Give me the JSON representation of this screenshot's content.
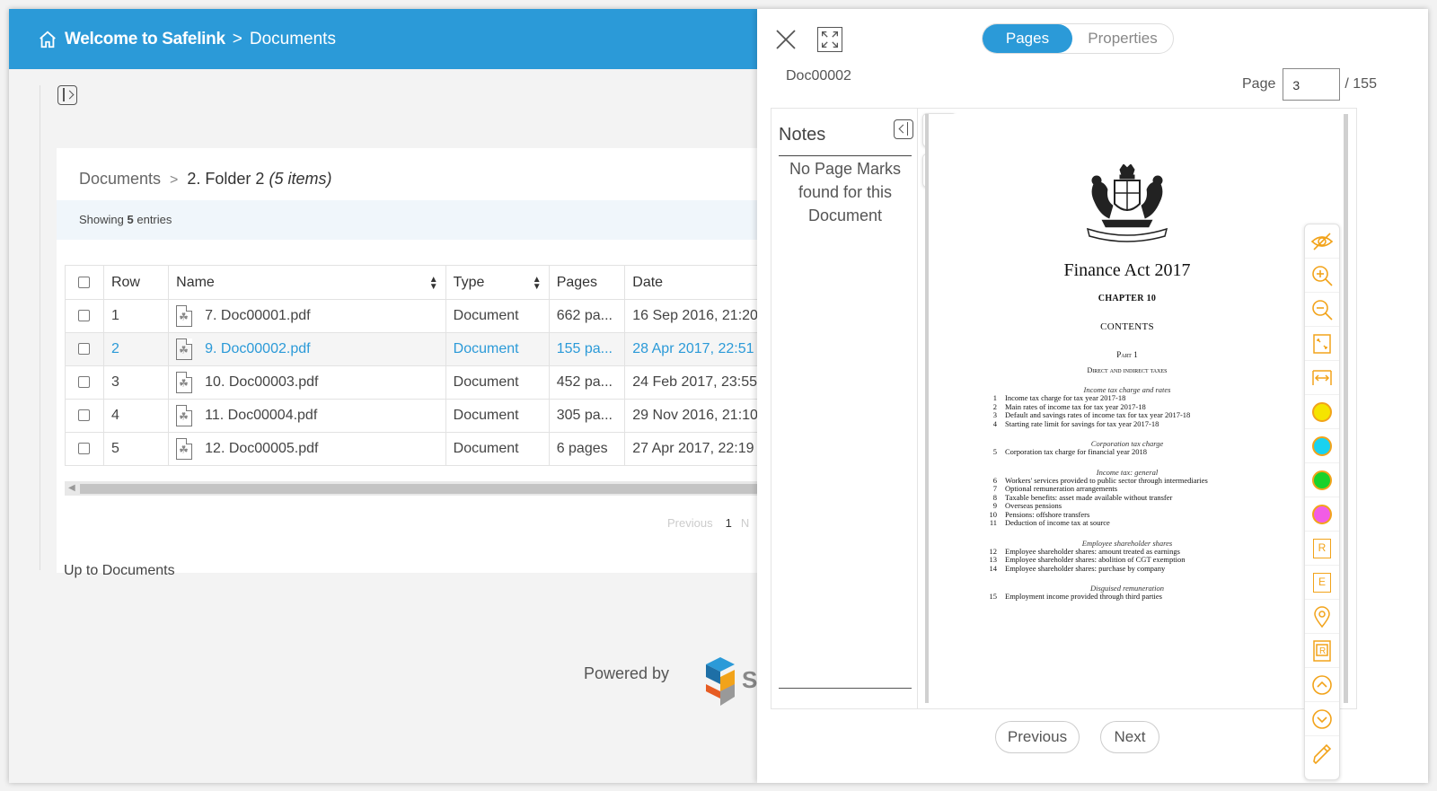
{
  "header": {
    "app_name": "Welcome to Safelink",
    "separator": ">",
    "section": "Documents"
  },
  "breadcrumb": {
    "root": "Documents",
    "separator": ">",
    "folder": "2. Folder 2",
    "count": "(5 items)"
  },
  "showing": {
    "prefix": "Showing",
    "count": "5",
    "suffix": "entries"
  },
  "table": {
    "columns": [
      "Row",
      "Name",
      "Type",
      "Pages",
      "Date"
    ],
    "rows": [
      {
        "row": "1",
        "name": "7. Doc00001.pdf",
        "type": "Document",
        "pages": "662 pa...",
        "date": "16 Sep 2016, 21:20"
      },
      {
        "row": "2",
        "name": "9. Doc00002.pdf",
        "type": "Document",
        "pages": "155 pa...",
        "date": "28 Apr 2017, 22:51",
        "selected": true
      },
      {
        "row": "3",
        "name": "10. Doc00003.pdf",
        "type": "Document",
        "pages": "452 pa...",
        "date": "24 Feb 2017, 23:55"
      },
      {
        "row": "4",
        "name": "11. Doc00004.pdf",
        "type": "Document",
        "pages": "305 pa...",
        "date": "29 Nov 2016, 21:10"
      },
      {
        "row": "5",
        "name": "12. Doc00005.pdf",
        "type": "Document",
        "pages": "6 pages",
        "date": "27 Apr 2017, 22:19"
      }
    ]
  },
  "pagination": {
    "previous": "Previous",
    "current": "1",
    "next": "N"
  },
  "up_link": "Up to Documents",
  "footer": {
    "powered_by": "Powered by"
  },
  "viewer": {
    "tabs": {
      "pages": "Pages",
      "properties": "Properties"
    },
    "doc_name": "Doc00002",
    "page_label": "Page",
    "page_value": "3",
    "page_total": "/ 155",
    "notes": {
      "title": "Notes",
      "empty_message": "No Page Marks found for this Document"
    },
    "buttons": {
      "previous": "Previous",
      "next": "Next"
    },
    "highlight_colors": [
      "#f5e400",
      "#19d2f0",
      "#19d22a",
      "#f25ce6"
    ],
    "accent": "#f2a31a",
    "page_content": {
      "title": "Finance Act 2017",
      "chapter": "CHAPTER 10",
      "contents": "CONTENTS",
      "part": "Part 1",
      "part_title": "Direct and indirect taxes",
      "sections": [
        {
          "heading": "Income tax charge and rates",
          "items": [
            {
              "n": "1",
              "t": "Income tax charge for tax year 2017-18"
            },
            {
              "n": "2",
              "t": "Main rates of income tax for tax year 2017-18"
            },
            {
              "n": "3",
              "t": "Default and savings rates of income tax for tax year 2017-18"
            },
            {
              "n": "4",
              "t": "Starting rate limit for savings for tax year 2017-18"
            }
          ]
        },
        {
          "heading": "Corporation tax charge",
          "items": [
            {
              "n": "5",
              "t": "Corporation tax charge for financial year 2018"
            }
          ]
        },
        {
          "heading": "Income tax: general",
          "items": [
            {
              "n": "6",
              "t": "Workers' services provided to public sector through intermediaries"
            },
            {
              "n": "7",
              "t": "Optional remuneration arrangements"
            },
            {
              "n": "8",
              "t": "Taxable benefits: asset made available without transfer"
            },
            {
              "n": "9",
              "t": "Overseas pensions"
            },
            {
              "n": "10",
              "t": "Pensions: offshore transfers"
            },
            {
              "n": "11",
              "t": "Deduction of income tax at source"
            }
          ]
        },
        {
          "heading": "Employee shareholder shares",
          "items": [
            {
              "n": "12",
              "t": "Employee shareholder shares: amount treated as earnings"
            },
            {
              "n": "13",
              "t": "Employee shareholder shares: abolition of CGT exemption"
            },
            {
              "n": "14",
              "t": "Employee shareholder shares: purchase by company"
            }
          ]
        },
        {
          "heading": "Disguised remuneration",
          "items": [
            {
              "n": "15",
              "t": "Employment income provided through third parties"
            }
          ]
        }
      ]
    }
  }
}
